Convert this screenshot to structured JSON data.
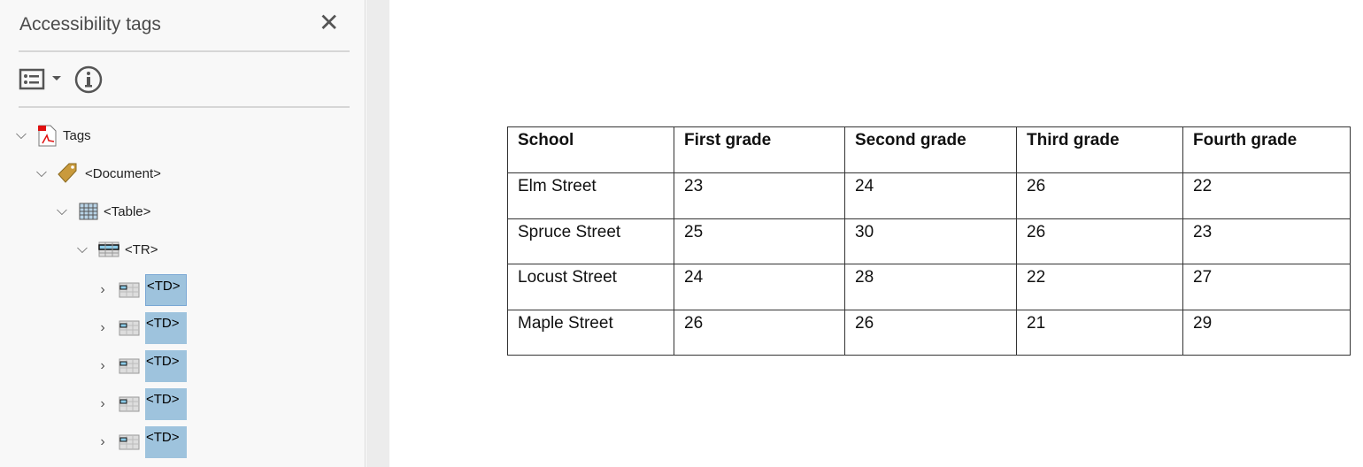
{
  "panel": {
    "title": "Accessibility tags",
    "close_icon": "close-icon",
    "options_icon": "options-list-icon",
    "info_icon": "info-icon"
  },
  "tree": {
    "root": {
      "label": "Tags",
      "icon": "pdf-icon"
    },
    "document": {
      "label": "<Document>",
      "icon": "tag-icon"
    },
    "table": {
      "label": "<Table>",
      "icon": "table-icon"
    },
    "tr": {
      "label": "<TR>",
      "icon": "table-row-icon"
    },
    "cells": [
      {
        "label": "<TD>"
      },
      {
        "label": "<TD>"
      },
      {
        "label": "<TD>"
      },
      {
        "label": "<TD>"
      },
      {
        "label": "<TD>"
      }
    ],
    "selection_color": "#9ec3dd"
  },
  "document_table": {
    "headers": [
      "School",
      "First grade",
      "Second grade",
      "Third grade",
      "Fourth grade"
    ],
    "rows": [
      [
        "Elm Street",
        "23",
        "24",
        "26",
        "22"
      ],
      [
        "Spruce Street",
        "25",
        "30",
        "26",
        "23"
      ],
      [
        "Locust Street",
        "24",
        "28",
        "22",
        "27"
      ],
      [
        "Maple Street",
        "26",
        "26",
        "21",
        "29"
      ]
    ]
  }
}
